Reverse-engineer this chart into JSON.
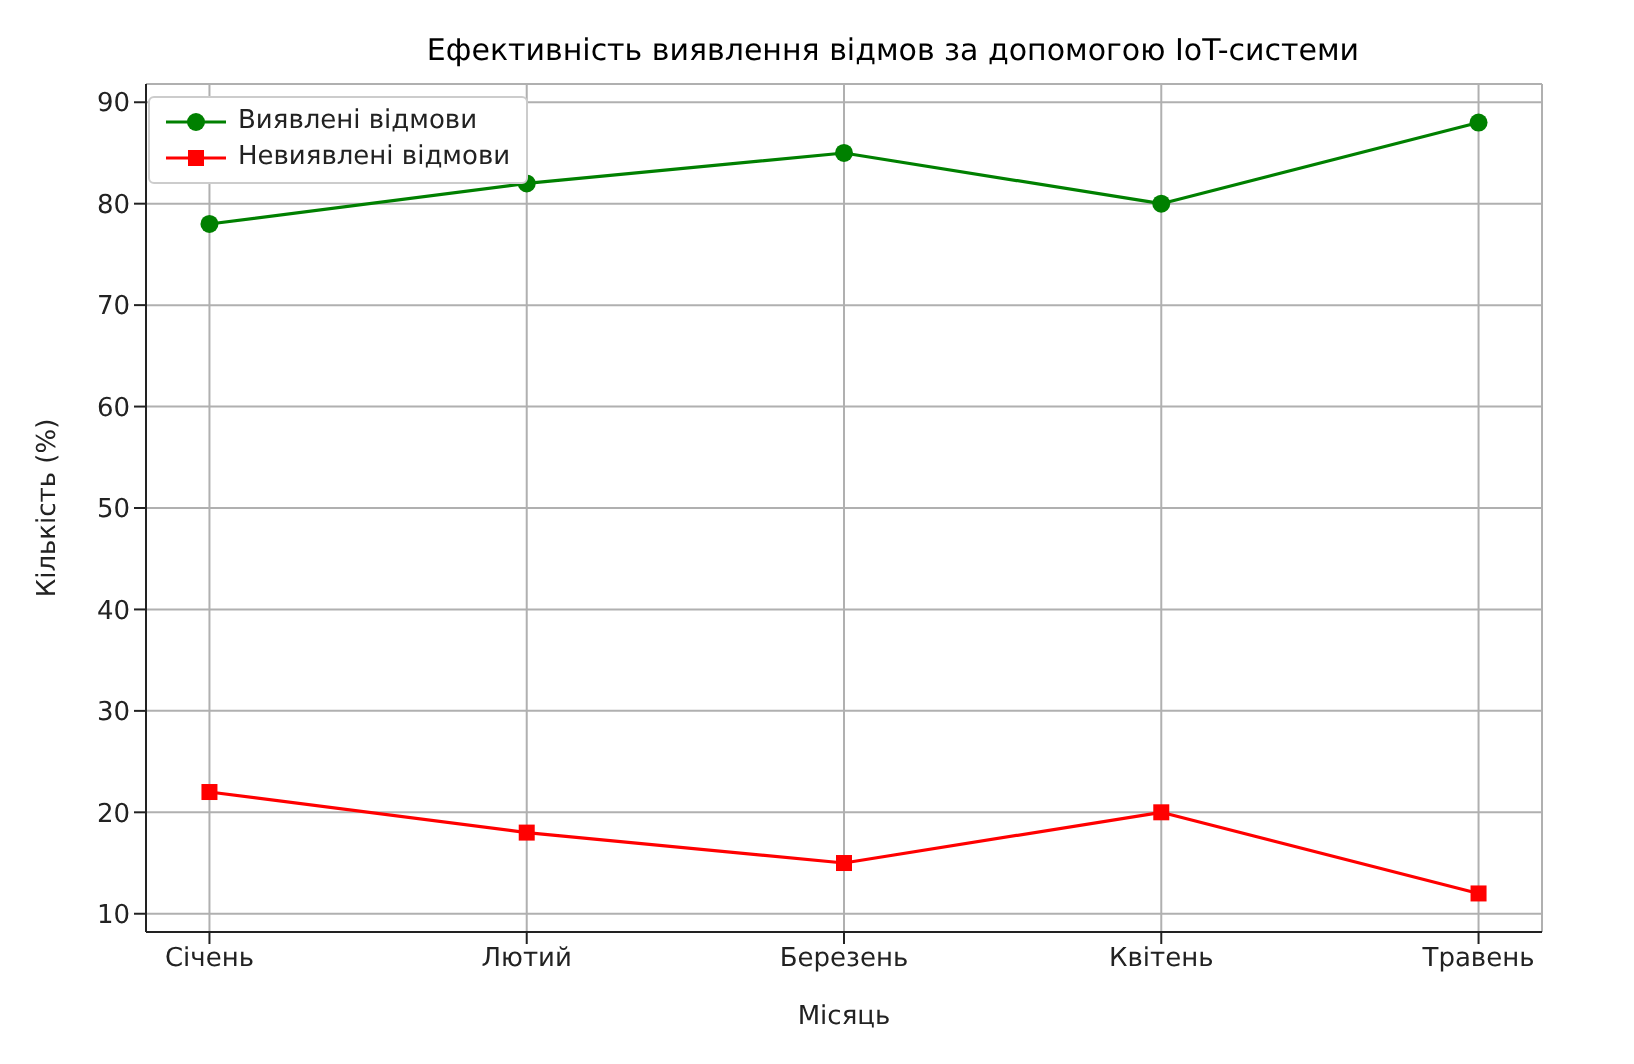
{
  "chart_data": {
    "type": "line",
    "title": "Ефективність виявлення відмов за допомогою IoT-системи",
    "xlabel": "Місяць",
    "ylabel": "Кількість (%)",
    "categories": [
      "Січень",
      "Лютий",
      "Березень",
      "Квітень",
      "Травень"
    ],
    "series": [
      {
        "name": "Виявлені відмови",
        "color": "#008000",
        "marker": "circle",
        "values": [
          78,
          82,
          85,
          80,
          88
        ]
      },
      {
        "name": "Невиявлені відмови",
        "color": "#ff0000",
        "marker": "square",
        "values": [
          22,
          18,
          15,
          20,
          12
        ]
      }
    ],
    "ylim": [
      8.2,
      91.8
    ],
    "yticks": [
      10,
      20,
      30,
      40,
      50,
      60,
      70,
      80,
      90
    ],
    "grid": true,
    "legend": "top left",
    "line_style": "solid"
  }
}
